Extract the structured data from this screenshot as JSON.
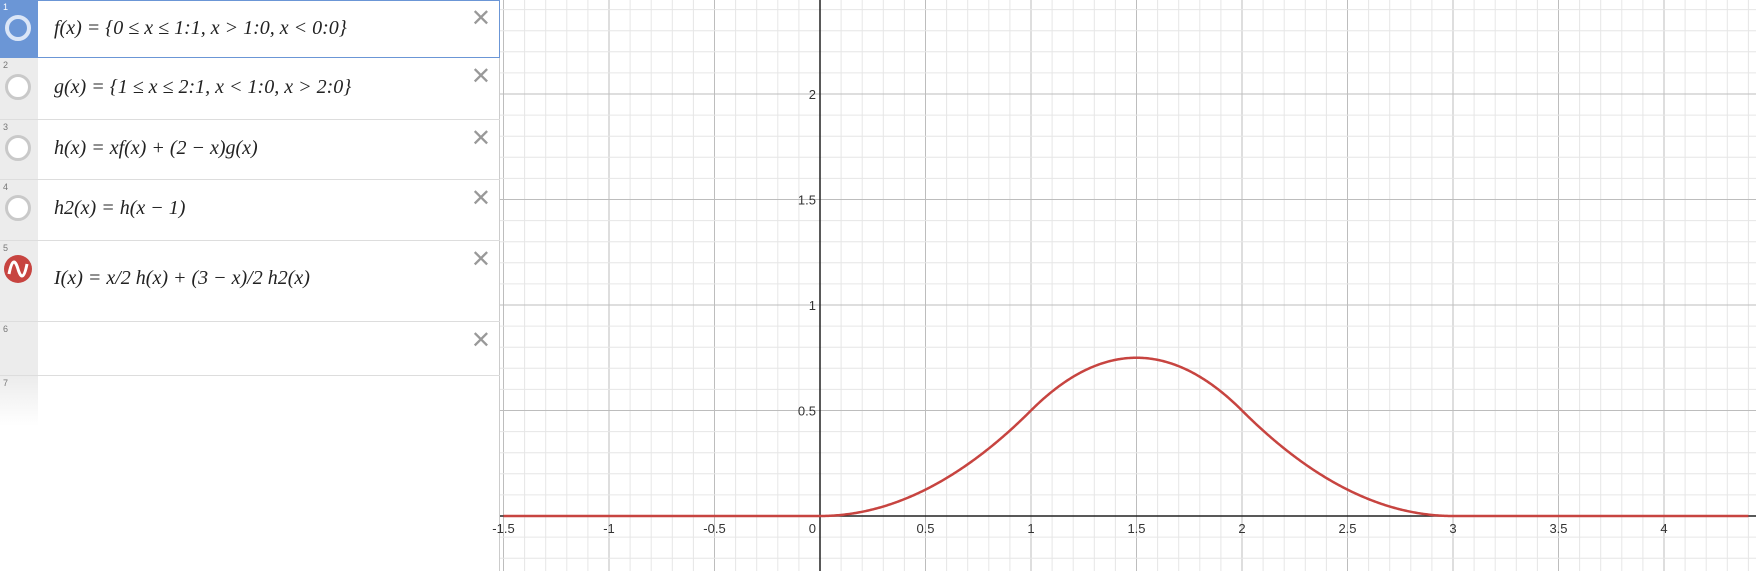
{
  "expressions": [
    {
      "num": "1",
      "latex": "f(x) = {0 ≤ x ≤ 1:1, x > 1:0, x < 0:0}"
    },
    {
      "num": "2",
      "latex": "g(x) = {1 ≤ x ≤ 2:1, x < 1:0, x > 2:0}"
    },
    {
      "num": "3",
      "latex": "h(x) = xf(x) + (2 − x)g(x)"
    },
    {
      "num": "4",
      "latex": "h2(x) = h(x − 1)"
    },
    {
      "num": "5",
      "latex": "I(x) = x/2 h(x) + (3 − x)/2 h2(x)"
    },
    {
      "num": "6",
      "latex": ""
    },
    {
      "num": "7",
      "latex": ""
    }
  ],
  "icons": {
    "close": "close-icon",
    "hidden": "hidden-circle-icon",
    "graph": "graph-wave-icon"
  },
  "colors": {
    "accent": "#6b96d6",
    "curve": "#c74440"
  },
  "graph": {
    "x_range": [
      -1.5,
      4.4
    ],
    "y_range": [
      -0.25,
      2.4
    ],
    "x_ticks": [
      "-1.5",
      "-1",
      "-0.5",
      "0",
      "0.5",
      "1",
      "1.5",
      "2",
      "2.5",
      "3",
      "3.5",
      "4"
    ],
    "y_ticks": [
      "0.5",
      "1",
      "1.5",
      "2"
    ]
  },
  "chart_data": {
    "type": "line",
    "series": [
      {
        "name": "",
        "x": [
          0,
          0.25,
          0.5,
          0.75,
          1,
          1.25,
          1.5,
          1.75,
          2,
          2.25,
          2.5,
          2.75,
          3
        ],
        "y": [
          0,
          0.031,
          0.125,
          0.281,
          0.5,
          0.688,
          0.75,
          0.688,
          0.5,
          0.281,
          0.125,
          0.031,
          0
        ]
      }
    ],
    "xlim": [
      -1.5,
      4.4
    ],
    "ylim": [
      -0.25,
      2.4
    ],
    "grid": true
  }
}
